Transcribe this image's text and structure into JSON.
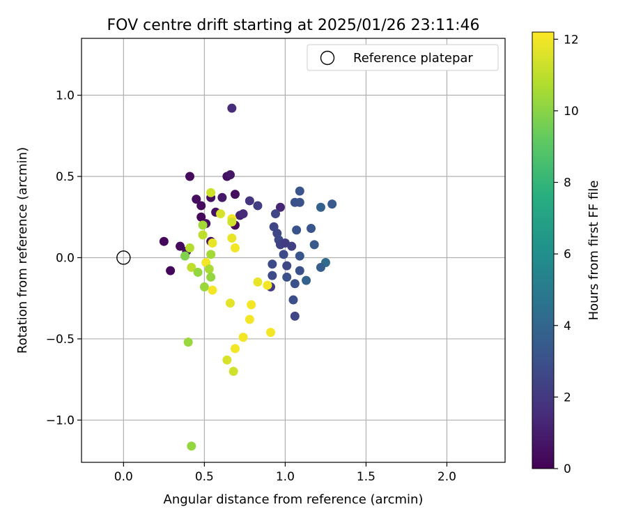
{
  "chart_data": {
    "type": "scatter",
    "title": "FOV centre drift starting at 2025/01/26 23:11:46",
    "xlabel": "Angular distance from reference (arcmin)",
    "ylabel": "Rotation from reference (arcmin)",
    "xlim": [
      -0.26,
      2.36
    ],
    "ylim": [
      -1.26,
      1.35
    ],
    "xticks": [
      "0.0",
      "0.5",
      "1.0",
      "1.5",
      "2.0"
    ],
    "xtick_values": [
      0,
      0.5,
      1.0,
      1.5,
      2.0
    ],
    "yticks": [
      "−1.0",
      "−0.5",
      "0.0",
      "0.5",
      "1.0"
    ],
    "ytick_values": [
      -1.0,
      -0.5,
      0,
      0.5,
      1.0
    ],
    "grid": true,
    "legend": {
      "placement": "top-right",
      "label": "Reference platepar"
    },
    "reference_point": {
      "x": 0.0,
      "y": 0.0
    },
    "colorbar": {
      "label": "Hours from first FF file",
      "colormap": "viridis",
      "range": [
        0,
        12.2
      ],
      "ticks": [
        "0",
        "2",
        "4",
        "6",
        "8",
        "10",
        "12"
      ],
      "tick_values": [
        0,
        2,
        4,
        6,
        8,
        10,
        12
      ]
    },
    "points": [
      {
        "x": 0.67,
        "y": 0.92,
        "c": 1.5
      },
      {
        "x": 0.41,
        "y": 0.5,
        "c": 0.3
      },
      {
        "x": 0.64,
        "y": 0.5,
        "c": 0.5
      },
      {
        "x": 0.66,
        "y": 0.51,
        "c": 0.7
      },
      {
        "x": 0.45,
        "y": 0.36,
        "c": 0.4
      },
      {
        "x": 0.48,
        "y": 0.32,
        "c": 0.3
      },
      {
        "x": 0.54,
        "y": 0.37,
        "c": 0.5
      },
      {
        "x": 0.61,
        "y": 0.37,
        "c": 0.8
      },
      {
        "x": 0.69,
        "y": 0.39,
        "c": 0.4
      },
      {
        "x": 0.57,
        "y": 0.28,
        "c": 0.6
      },
      {
        "x": 0.48,
        "y": 0.25,
        "c": 0.2
      },
      {
        "x": 0.51,
        "y": 0.21,
        "c": 0.6
      },
      {
        "x": 0.69,
        "y": 0.2,
        "c": 0.3
      },
      {
        "x": 0.72,
        "y": 0.26,
        "c": 1.2
      },
      {
        "x": 0.74,
        "y": 0.27,
        "c": 1.5
      },
      {
        "x": 0.25,
        "y": 0.1,
        "c": 0.2
      },
      {
        "x": 0.35,
        "y": 0.07,
        "c": 0.3
      },
      {
        "x": 0.39,
        "y": 0.04,
        "c": 0.5
      },
      {
        "x": 0.29,
        "y": -0.08,
        "c": 0.2
      },
      {
        "x": 0.54,
        "y": 0.1,
        "c": 0.4
      },
      {
        "x": 0.97,
        "y": 0.31,
        "c": 1.3
      },
      {
        "x": 0.78,
        "y": 0.35,
        "c": 1.8
      },
      {
        "x": 0.83,
        "y": 0.32,
        "c": 2.2
      },
      {
        "x": 0.94,
        "y": 0.27,
        "c": 2.6
      },
      {
        "x": 1.06,
        "y": 0.34,
        "c": 3.0
      },
      {
        "x": 1.09,
        "y": 0.34,
        "c": 3.0
      },
      {
        "x": 1.09,
        "y": 0.41,
        "c": 3.2
      },
      {
        "x": 0.93,
        "y": 0.19,
        "c": 2.5
      },
      {
        "x": 0.95,
        "y": 0.15,
        "c": 2.6
      },
      {
        "x": 0.96,
        "y": 0.11,
        "c": 2.7
      },
      {
        "x": 0.97,
        "y": 0.08,
        "c": 2.4
      },
      {
        "x": 1.0,
        "y": 0.09,
        "c": 2.2
      },
      {
        "x": 1.04,
        "y": 0.07,
        "c": 2.3
      },
      {
        "x": 1.07,
        "y": 0.17,
        "c": 3.1
      },
      {
        "x": 1.16,
        "y": 0.18,
        "c": 3.2
      },
      {
        "x": 1.18,
        "y": 0.08,
        "c": 3.4
      },
      {
        "x": 1.22,
        "y": 0.31,
        "c": 3.8
      },
      {
        "x": 1.29,
        "y": 0.33,
        "c": 3.5
      },
      {
        "x": 0.99,
        "y": 0.02,
        "c": 2.8
      },
      {
        "x": 1.09,
        "y": 0.01,
        "c": 3.2
      },
      {
        "x": 0.92,
        "y": -0.04,
        "c": 2.8
      },
      {
        "x": 1.01,
        "y": -0.05,
        "c": 2.6
      },
      {
        "x": 1.09,
        "y": -0.08,
        "c": 3.0
      },
      {
        "x": 1.25,
        "y": -0.03,
        "c": 4.2
      },
      {
        "x": 1.22,
        "y": -0.06,
        "c": 3.6
      },
      {
        "x": 0.92,
        "y": -0.11,
        "c": 2.8
      },
      {
        "x": 1.01,
        "y": -0.12,
        "c": 3.0
      },
      {
        "x": 1.06,
        "y": -0.16,
        "c": 3.0
      },
      {
        "x": 1.13,
        "y": -0.14,
        "c": 3.8
      },
      {
        "x": 0.91,
        "y": -0.18,
        "c": 2.1
      },
      {
        "x": 1.05,
        "y": -0.26,
        "c": 2.9
      },
      {
        "x": 1.06,
        "y": -0.36,
        "c": 2.5
      },
      {
        "x": 0.54,
        "y": 0.4,
        "c": 11.3
      },
      {
        "x": 0.6,
        "y": 0.27,
        "c": 11.5
      },
      {
        "x": 0.67,
        "y": 0.24,
        "c": 12.0
      },
      {
        "x": 0.67,
        "y": 0.22,
        "c": 11.3
      },
      {
        "x": 0.49,
        "y": 0.2,
        "c": 10.5
      },
      {
        "x": 0.49,
        "y": 0.14,
        "c": 11.0
      },
      {
        "x": 0.67,
        "y": 0.12,
        "c": 11.8
      },
      {
        "x": 0.69,
        "y": 0.06,
        "c": 12.0
      },
      {
        "x": 0.55,
        "y": 0.09,
        "c": 11.8
      },
      {
        "x": 0.41,
        "y": 0.06,
        "c": 10.8
      },
      {
        "x": 0.38,
        "y": 0.01,
        "c": 9.8
      },
      {
        "x": 0.54,
        "y": 0.02,
        "c": 10.5
      },
      {
        "x": 0.51,
        "y": -0.03,
        "c": 12.0
      },
      {
        "x": 0.42,
        "y": -0.06,
        "c": 11.0
      },
      {
        "x": 0.46,
        "y": -0.09,
        "c": 10.2
      },
      {
        "x": 0.53,
        "y": -0.07,
        "c": 10.6
      },
      {
        "x": 0.54,
        "y": -0.12,
        "c": 10.2
      },
      {
        "x": 0.5,
        "y": -0.18,
        "c": 10.3
      },
      {
        "x": 0.55,
        "y": -0.2,
        "c": 12.0
      },
      {
        "x": 0.83,
        "y": -0.15,
        "c": 11.8
      },
      {
        "x": 0.89,
        "y": -0.17,
        "c": 12.0
      },
      {
        "x": 0.66,
        "y": -0.28,
        "c": 11.7
      },
      {
        "x": 0.79,
        "y": -0.29,
        "c": 12.0
      },
      {
        "x": 0.78,
        "y": -0.38,
        "c": 12.0
      },
      {
        "x": 0.91,
        "y": -0.46,
        "c": 12.0
      },
      {
        "x": 0.74,
        "y": -0.49,
        "c": 12.0
      },
      {
        "x": 0.4,
        "y": -0.52,
        "c": 10.3
      },
      {
        "x": 0.69,
        "y": -0.56,
        "c": 12.0
      },
      {
        "x": 0.64,
        "y": -0.63,
        "c": 11.5
      },
      {
        "x": 0.68,
        "y": -0.7,
        "c": 11.3
      },
      {
        "x": 0.42,
        "y": -1.16,
        "c": 10.2
      }
    ]
  }
}
